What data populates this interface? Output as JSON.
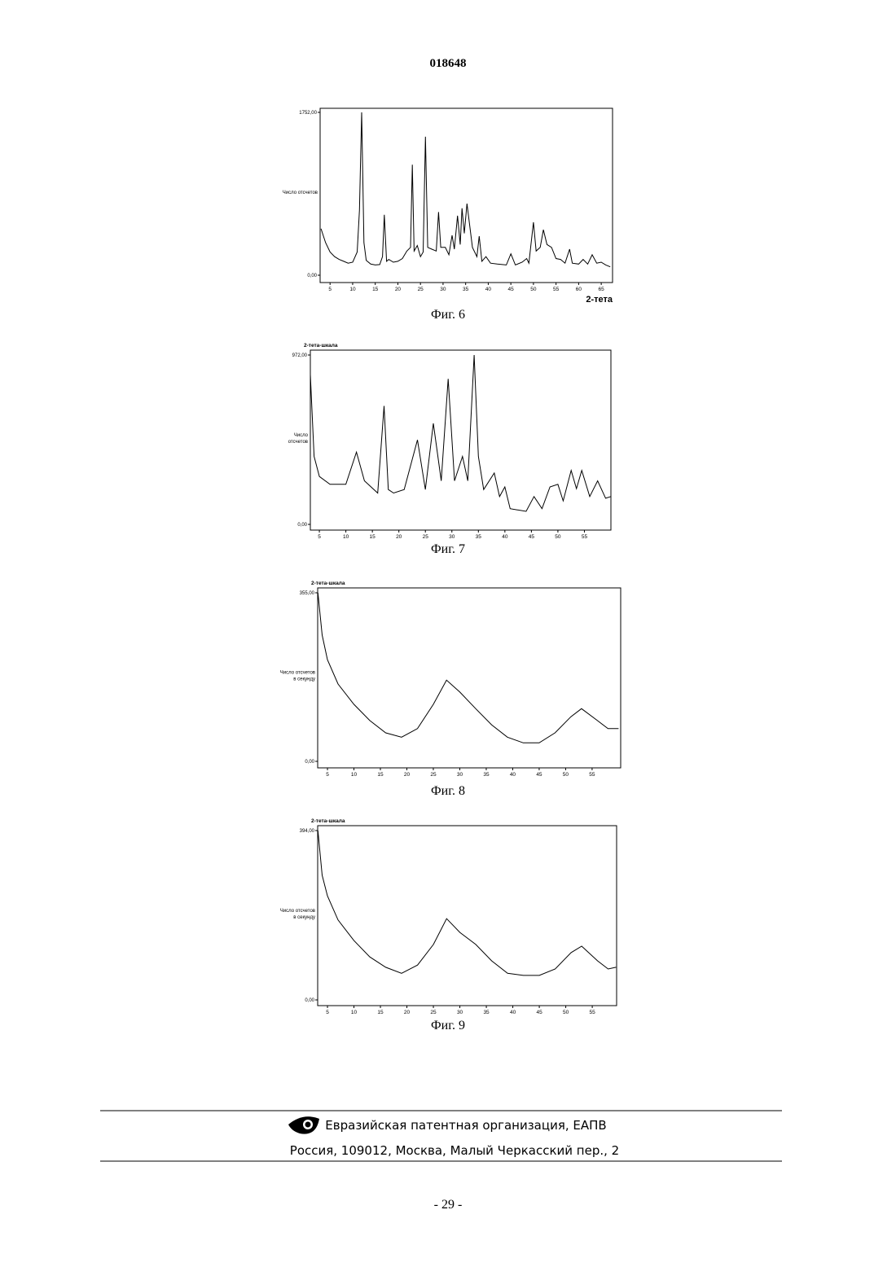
{
  "header": {
    "number": "018648"
  },
  "chart_data": [
    {
      "type": "line",
      "caption": "Фиг. 6",
      "ylabel": [
        "Число отсчетов"
      ],
      "xlabel": "2-тета",
      "xlim": [
        2.8,
        67.5
      ],
      "ylim": [
        0,
        1752
      ],
      "xticks": [
        5,
        10,
        15,
        20,
        25,
        30,
        35,
        40,
        45,
        50,
        55,
        60,
        65
      ],
      "yticks": [
        {
          "value": 0,
          "label": "0,00"
        },
        {
          "value": 1752,
          "label": "1752,00"
        }
      ],
      "color": "#000000",
      "x": [
        3,
        4,
        5,
        6,
        7,
        8,
        9,
        10,
        11,
        11.5,
        12,
        12.5,
        13,
        14,
        15,
        16,
        16.6,
        17,
        17.5,
        18,
        19,
        20,
        21,
        22,
        22.8,
        23.2,
        23.6,
        24.3,
        25,
        25.6,
        26.1,
        26.6,
        27.5,
        28.5,
        29,
        29.5,
        30.5,
        31.3,
        32,
        32.5,
        33.2,
        33.8,
        34.2,
        34.7,
        35.3,
        36.5,
        37.5,
        38,
        38.6,
        39.5,
        40.5,
        42,
        44,
        45,
        46,
        47.5,
        48.5,
        49,
        50,
        50.6,
        51.5,
        52.2,
        53,
        54,
        55,
        56,
        57,
        58,
        58.6,
        60,
        61,
        62,
        63,
        64,
        65,
        66,
        67
      ],
      "values": [
        500,
        350,
        250,
        200,
        170,
        150,
        130,
        140,
        250,
        700,
        1752,
        350,
        160,
        120,
        110,
        115,
        200,
        650,
        150,
        170,
        140,
        150,
        180,
        260,
        300,
        1190,
        260,
        320,
        200,
        250,
        1490,
        300,
        280,
        260,
        680,
        300,
        300,
        220,
        430,
        280,
        640,
        330,
        720,
        450,
        770,
        300,
        200,
        420,
        150,
        200,
        130,
        120,
        110,
        230,
        110,
        140,
        180,
        130,
        570,
        260,
        300,
        490,
        330,
        300,
        180,
        170,
        130,
        280,
        130,
        120,
        170,
        120,
        220,
        130,
        140,
        110,
        90
      ]
    },
    {
      "type": "line",
      "title": "2-тета-шкала",
      "caption": "Фиг. 7",
      "ylabel": [
        "Число",
        "отсчетов"
      ],
      "xlim": [
        3.3,
        60
      ],
      "ylim": [
        0,
        972
      ],
      "xticks": [
        5,
        10,
        15,
        20,
        25,
        30,
        35,
        40,
        45,
        50,
        55
      ],
      "yticks": [
        {
          "value": 0,
          "label": "0,00"
        },
        {
          "value": 972,
          "label": "972,00"
        }
      ],
      "color": "#000000",
      "x": [
        3.3,
        4,
        5,
        7,
        10,
        12,
        13.5,
        16,
        17.2,
        18,
        19,
        21,
        23.5,
        25,
        26.5,
        28,
        29.3,
        30.5,
        32,
        33,
        34.2,
        35,
        36,
        38,
        39,
        40,
        41,
        44,
        45.5,
        47,
        48.5,
        50,
        51,
        52.5,
        53.5,
        54.5,
        56,
        57.5,
        59,
        60
      ],
      "values": [
        860,
        390,
        275,
        230,
        230,
        415,
        250,
        180,
        680,
        200,
        180,
        200,
        485,
        200,
        580,
        250,
        835,
        250,
        390,
        250,
        972,
        390,
        200,
        295,
        160,
        215,
        90,
        75,
        160,
        90,
        215,
        230,
        135,
        310,
        205,
        310,
        160,
        250,
        150,
        160
      ]
    },
    {
      "type": "line",
      "title": "2-тета-шкала",
      "caption": "Фиг. 8",
      "ylabel": [
        "Число отсчетов",
        "в секунду"
      ],
      "xlim": [
        3.15,
        60.4
      ],
      "ylim": [
        0,
        355
      ],
      "xticks": [
        5,
        10,
        15,
        20,
        25,
        30,
        35,
        40,
        45,
        50,
        55
      ],
      "yticks": [
        {
          "value": 0,
          "label": "0,00"
        },
        {
          "value": 355,
          "label": "355,00"
        }
      ],
      "color": "#000000",
      "x": [
        3.2,
        4,
        5,
        7,
        10,
        13,
        16,
        19,
        22,
        25,
        27.5,
        30,
        33,
        36,
        39,
        42,
        45,
        48,
        51,
        53,
        56,
        58,
        60
      ],
      "values": [
        355,
        266,
        214,
        163,
        120,
        86,
        60,
        51,
        69,
        120,
        171,
        146,
        111,
        77,
        51,
        39,
        39,
        60,
        94,
        111,
        86,
        69,
        69
      ]
    },
    {
      "type": "line",
      "title": "2-тета-шкала",
      "caption": "Фиг. 9",
      "ylabel": [
        "Число отсчетов",
        "в секунду"
      ],
      "xlim": [
        3.15,
        59.6
      ],
      "ylim": [
        0,
        394
      ],
      "xticks": [
        5,
        10,
        15,
        20,
        25,
        30,
        35,
        40,
        45,
        50,
        55
      ],
      "yticks": [
        {
          "value": 0,
          "label": "0,00"
        },
        {
          "value": 394,
          "label": "394,00"
        }
      ],
      "color": "#000000",
      "x": [
        3.2,
        4,
        5,
        7,
        10,
        13,
        16,
        19,
        22,
        25,
        27.5,
        30,
        33,
        36,
        39,
        42,
        45,
        48,
        51,
        53,
        56,
        58,
        59.5
      ],
      "values": [
        394,
        290,
        242,
        186,
        138,
        100,
        76,
        62,
        81,
        129,
        189,
        157,
        129,
        91,
        62,
        57,
        57,
        72,
        110,
        125,
        91,
        72,
        76
      ]
    }
  ],
  "footer": {
    "organization": "Евразийская патентная организация, ЕАПВ",
    "address": "Россия, 109012, Москва, Малый Черкасский пер., 2",
    "page": "- 29 -"
  }
}
